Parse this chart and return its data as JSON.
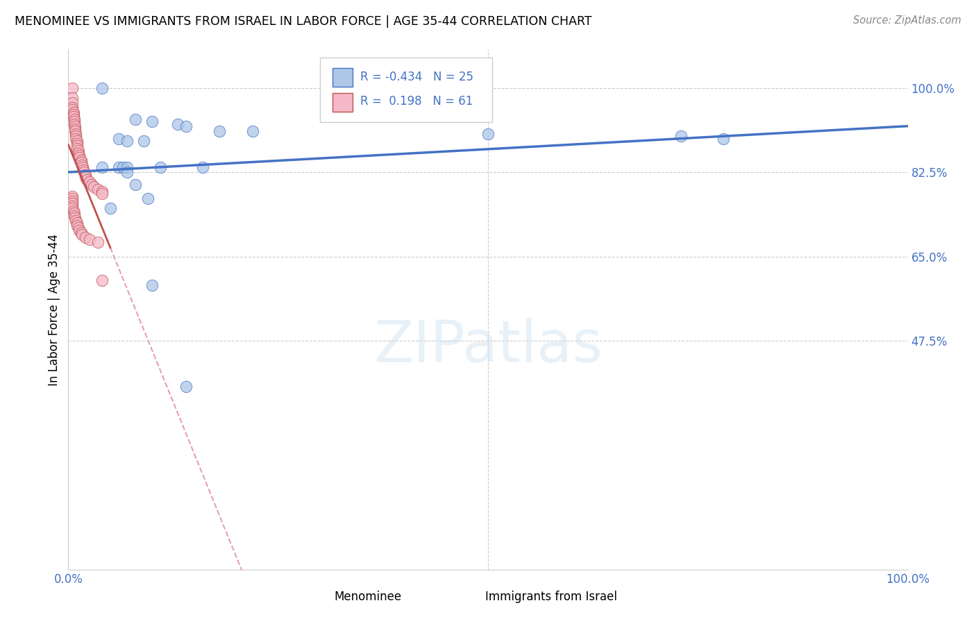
{
  "title": "MENOMINEE VS IMMIGRANTS FROM ISRAEL IN LABOR FORCE | AGE 35-44 CORRELATION CHART",
  "source": "Source: ZipAtlas.com",
  "ylabel": "In Labor Force | Age 35-44",
  "xlim": [
    0.0,
    1.0
  ],
  "ylim": [
    0.0,
    1.08
  ],
  "yticks": [
    0.0,
    0.475,
    0.65,
    0.825,
    1.0
  ],
  "ytick_labels": [
    "",
    "47.5%",
    "65.0%",
    "82.5%",
    "100.0%"
  ],
  "xticks": [
    0.0,
    0.1,
    0.2,
    0.3,
    0.4,
    0.5,
    0.6,
    0.7,
    0.8,
    0.9,
    1.0
  ],
  "xtick_labels": [
    "0.0%",
    "",
    "",
    "",
    "",
    "",
    "",
    "",
    "",
    "",
    "100.0%"
  ],
  "menominee_color": "#aec6e8",
  "israel_color": "#f4b8c8",
  "trendline_menominee_color": "#4472c4",
  "trendline_israel_solid_color": "#c0504d",
  "trendline_israel_dashed_color": "#e8a0a8",
  "R_menominee": -0.434,
  "N_menominee": 25,
  "R_israel": 0.198,
  "N_israel": 61,
  "background_color": "#ffffff",
  "grid_color": "#cccccc",
  "axis_color": "#4472c4",
  "menominee_x": [
    0.04,
    0.08,
    0.1,
    0.13,
    0.14,
    0.18,
    0.22,
    0.5,
    0.73,
    0.78,
    0.06,
    0.07,
    0.09,
    0.11,
    0.16,
    0.04,
    0.05,
    0.06,
    0.065,
    0.07,
    0.07,
    0.08,
    0.095,
    0.1,
    0.14
  ],
  "menominee_y": [
    1.0,
    0.935,
    0.93,
    0.925,
    0.92,
    0.91,
    0.91,
    0.905,
    0.9,
    0.895,
    0.895,
    0.89,
    0.89,
    0.835,
    0.835,
    0.835,
    0.75,
    0.835,
    0.835,
    0.835,
    0.825,
    0.8,
    0.77,
    0.59,
    0.38
  ],
  "israel_x": [
    0.005,
    0.005,
    0.005,
    0.005,
    0.005,
    0.006,
    0.006,
    0.006,
    0.007,
    0.007,
    0.007,
    0.008,
    0.008,
    0.008,
    0.009,
    0.009,
    0.009,
    0.01,
    0.01,
    0.01,
    0.01,
    0.012,
    0.012,
    0.013,
    0.013,
    0.015,
    0.015,
    0.016,
    0.017,
    0.018,
    0.019,
    0.02,
    0.02,
    0.022,
    0.025,
    0.028,
    0.03,
    0.035,
    0.04,
    0.04,
    0.005,
    0.005,
    0.005,
    0.005,
    0.005,
    0.005,
    0.006,
    0.007,
    0.007,
    0.008,
    0.009,
    0.01,
    0.01,
    0.012,
    0.013,
    0.015,
    0.016,
    0.02,
    0.025,
    0.035,
    0.04
  ],
  "israel_y": [
    1.0,
    0.98,
    0.97,
    0.96,
    0.955,
    0.95,
    0.945,
    0.94,
    0.935,
    0.93,
    0.925,
    0.92,
    0.915,
    0.91,
    0.905,
    0.9,
    0.895,
    0.89,
    0.885,
    0.88,
    0.875,
    0.87,
    0.865,
    0.86,
    0.855,
    0.85,
    0.845,
    0.84,
    0.835,
    0.83,
    0.825,
    0.82,
    0.815,
    0.81,
    0.805,
    0.8,
    0.795,
    0.79,
    0.785,
    0.78,
    0.775,
    0.77,
    0.765,
    0.76,
    0.755,
    0.75,
    0.745,
    0.74,
    0.735,
    0.73,
    0.725,
    0.72,
    0.715,
    0.71,
    0.705,
    0.7,
    0.695,
    0.69,
    0.685,
    0.68,
    0.6
  ]
}
